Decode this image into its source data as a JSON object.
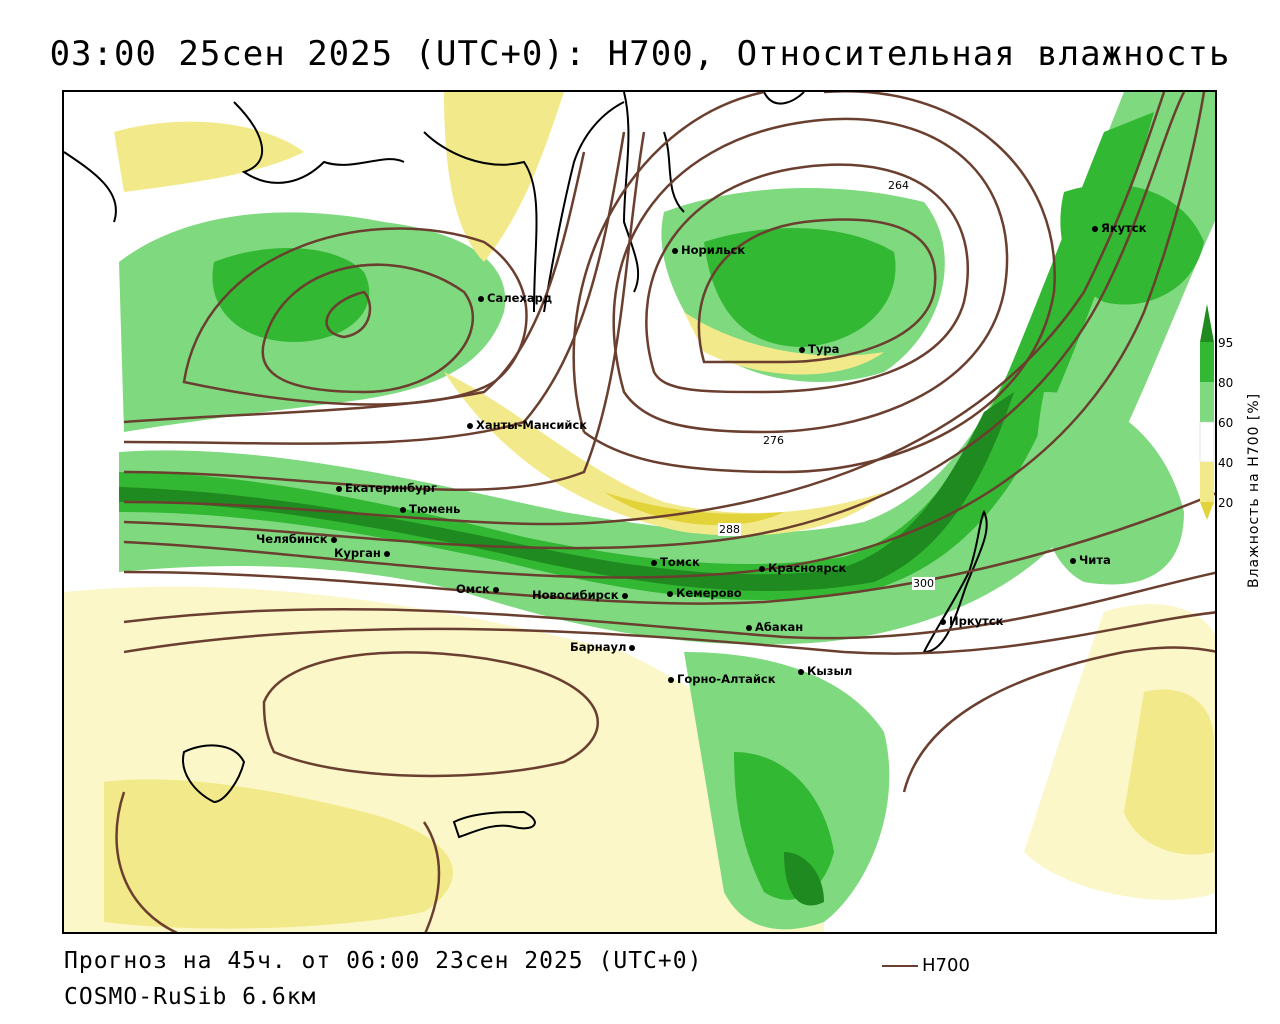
{
  "title": "03:00 25сен 2025 (UTC+0): H700, Относительная влажность",
  "footer": {
    "forecast": "Прогноз на 45ч. от 06:00 23сен 2025 (UTC+0)",
    "model": "COSMO-RuSib 6.6км"
  },
  "line_legend": {
    "label": "H700",
    "color": "#6b3f2f"
  },
  "colorbar": {
    "axis_label": "Влажность на H700 [%]",
    "ticks": [
      "95",
      "80",
      "60",
      "40",
      "20"
    ],
    "colors": [
      "#1f8a1f",
      "#33b833",
      "#7fd97f",
      "#c8f0c0",
      "#ffffff",
      "#fbf7c8",
      "#f2ea8a",
      "#e3d33a"
    ]
  },
  "isoline_labels": [
    "264",
    "276",
    "288",
    "300"
  ],
  "cities": [
    {
      "name": "Якутск"
    },
    {
      "name": "Норильск"
    },
    {
      "name": "Салехард"
    },
    {
      "name": "Тура"
    },
    {
      "name": "Ханты-Мансийск"
    },
    {
      "name": "Екатеринбург"
    },
    {
      "name": "Тюмень"
    },
    {
      "name": "Челябинск"
    },
    {
      "name": "Курган"
    },
    {
      "name": "Омск"
    },
    {
      "name": "Новосибирск"
    },
    {
      "name": "Томск"
    },
    {
      "name": "Кемерово"
    },
    {
      "name": "Красноярск"
    },
    {
      "name": "Абакан"
    },
    {
      "name": "Барнаул"
    },
    {
      "name": "Горно-Алтайск"
    },
    {
      "name": "Кызыл"
    },
    {
      "name": "Иркутск"
    },
    {
      "name": "Чита"
    }
  ]
}
